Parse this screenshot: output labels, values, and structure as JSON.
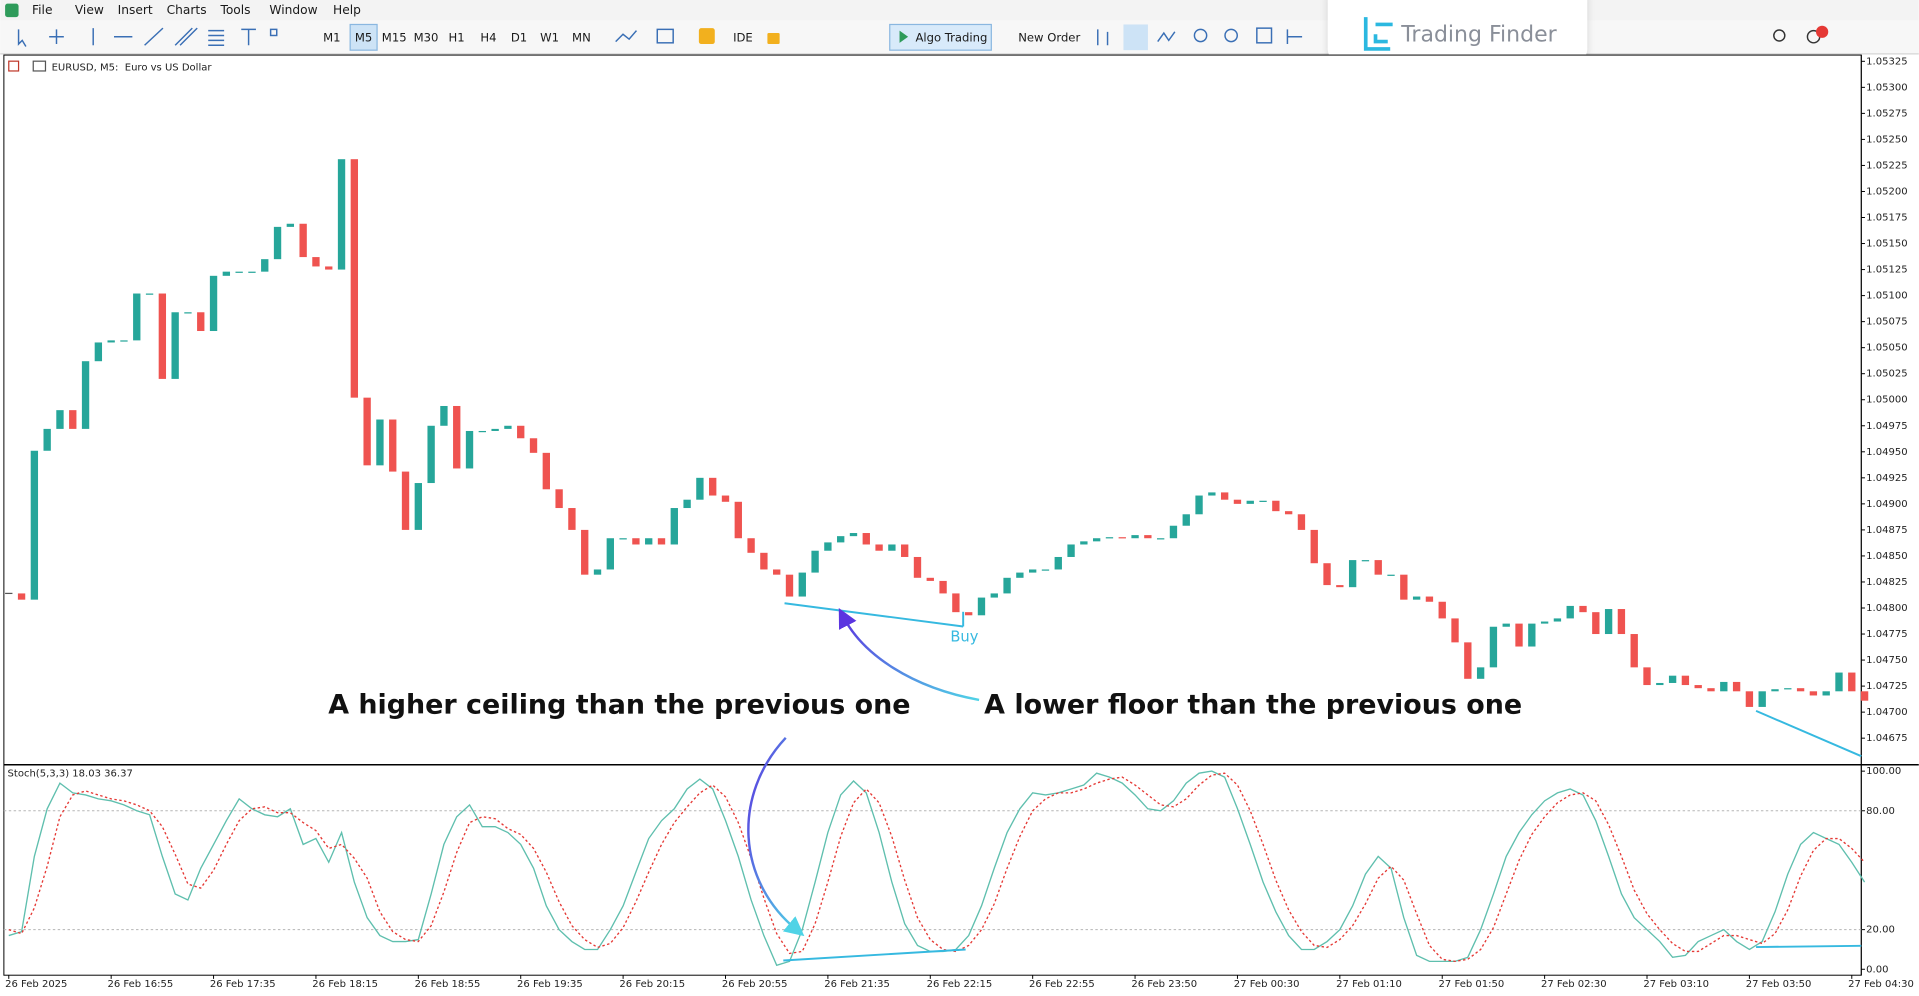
{
  "menu": [
    "File",
    "View",
    "Insert",
    "Charts",
    "Tools",
    "Window",
    "Help"
  ],
  "toolbar": {
    "timeframes": [
      "M1",
      "M5",
      "M15",
      "M30",
      "H1",
      "H4",
      "D1",
      "W1",
      "MN"
    ],
    "ide": "IDE",
    "algo_trading": "Algo Trading",
    "new_order": "New Order"
  },
  "watermark": "Trading Finder",
  "chart_data": [
    {
      "type": "candlestick",
      "title": "EURUSD, M5:  Euro vs US Dollar",
      "up_color": "#26a69a",
      "down_color": "#ef5350",
      "close": [
        1.04814,
        1.04808,
        1.04951,
        1.04972,
        1.0499,
        1.04972,
        1.05037,
        1.05055,
        1.05057,
        1.05057,
        1.05102,
        1.05102,
        1.0502,
        1.05084,
        1.05084,
        1.05066,
        1.05119,
        1.05123,
        1.05123,
        1.05123,
        1.05135,
        1.05166,
        1.05169,
        1.05137,
        1.05128,
        1.05125,
        1.05231,
        1.05002,
        1.04937,
        1.04981,
        1.04931,
        1.04875,
        1.0492,
        1.04975,
        1.04994,
        1.04934,
        1.0497,
        1.0497,
        1.04972,
        1.04975,
        1.04963,
        1.04949,
        1.04914,
        1.04896,
        1.04875,
        1.04832,
        1.04837,
        1.04867,
        1.04867,
        1.04861,
        1.04867,
        1.04861,
        1.04896,
        1.04904,
        1.04925,
        1.04908,
        1.04902,
        1.04867,
        1.04853,
        1.04837,
        1.04832,
        1.04811,
        1.04834,
        1.04855,
        1.04863,
        1.04869,
        1.04872,
        1.04861,
        1.04855,
        1.04861,
        1.04849,
        1.04829,
        1.04826,
        1.04814,
        1.04796,
        1.04793,
        1.0481,
        1.04814,
        1.04829,
        1.04834,
        1.04837,
        1.04837,
        1.04849,
        1.04861,
        1.04864,
        1.04867,
        1.04868,
        1.04867,
        1.0487,
        1.04867,
        1.04867,
        1.04879,
        1.0489,
        1.04908,
        1.04911,
        1.04904,
        1.049,
        1.04903,
        1.04903,
        1.04893,
        1.0489,
        1.04875,
        1.04843,
        1.04822,
        1.0482,
        1.04846,
        1.04846,
        1.04832,
        1.04832,
        1.04808,
        1.04811,
        1.04806,
        1.0479,
        1.04767,
        1.04732,
        1.04743,
        1.04782,
        1.04785,
        1.04763,
        1.04785,
        1.04787,
        1.0479,
        1.04802,
        1.04796,
        1.04775,
        1.04799,
        1.04775,
        1.04743,
        1.04726,
        1.04728,
        1.04735,
        1.04726,
        1.04723,
        1.0472,
        1.04729,
        1.0472,
        1.04705,
        1.0472,
        1.04722,
        1.04723,
        1.0472,
        1.04716,
        1.0472,
        1.04738,
        1.0472,
        1.04711
      ],
      "ylim": [
        1.04653,
        1.05331
      ],
      "yticks": [
        {
          "value": 1.05325,
          "label": "1.05325"
        },
        {
          "value": 1.053,
          "label": "1.05300"
        },
        {
          "value": 1.05275,
          "label": "1.05275"
        },
        {
          "value": 1.0525,
          "label": "1.05250"
        },
        {
          "value": 1.05225,
          "label": "1.05225"
        },
        {
          "value": 1.052,
          "label": "1.05200"
        },
        {
          "value": 1.05175,
          "label": "1.05175"
        },
        {
          "value": 1.0515,
          "label": "1.05150"
        },
        {
          "value": 1.05125,
          "label": "1.05125"
        },
        {
          "value": 1.051,
          "label": "1.05100"
        },
        {
          "value": 1.05075,
          "label": "1.05075"
        },
        {
          "value": 1.0505,
          "label": "1.05050"
        },
        {
          "value": 1.05025,
          "label": "1.05025"
        },
        {
          "value": 1.05,
          "label": "1.05000"
        },
        {
          "value": 1.04975,
          "label": "1.04975"
        },
        {
          "value": 1.0495,
          "label": "1.04950"
        },
        {
          "value": 1.04925,
          "label": "1.04925"
        },
        {
          "value": 1.049,
          "label": "1.04900"
        },
        {
          "value": 1.04875,
          "label": "1.04875"
        },
        {
          "value": 1.0485,
          "label": "1.04850"
        },
        {
          "value": 1.04825,
          "label": "1.04825"
        },
        {
          "value": 1.048,
          "label": "1.04800"
        },
        {
          "value": 1.04775,
          "label": "1.04775"
        },
        {
          "value": 1.0475,
          "label": "1.04750"
        },
        {
          "value": 1.04725,
          "label": "1.04725"
        },
        {
          "value": 1.047,
          "label": "1.04700"
        },
        {
          "value": 1.04675,
          "label": "1.04675"
        }
      ],
      "annotations": [
        "A higher ceiling than the previous one",
        "A lower floor than the previous one",
        "Buy"
      ]
    },
    {
      "type": "line",
      "title": "Stoch(5,3,3) 18.03 36.37",
      "series": [
        {
          "color": "#5fbfae",
          "line_style": "solid",
          "values": [
            17,
            19,
            57,
            81,
            94,
            89,
            88,
            86,
            85,
            83,
            80,
            78,
            57,
            38,
            35,
            51,
            63,
            75,
            86,
            81,
            78,
            77,
            81,
            63,
            66,
            54,
            69,
            44,
            26,
            17,
            14,
            14,
            15,
            38,
            63,
            77,
            83,
            72,
            72,
            69,
            63,
            51,
            32,
            20,
            14,
            10,
            10,
            20,
            32,
            49,
            66,
            75,
            81,
            91,
            96,
            91,
            75,
            57,
            35,
            17,
            2,
            4,
            20,
            44,
            69,
            88,
            95,
            89,
            69,
            44,
            23,
            12,
            9,
            9,
            10,
            17,
            32,
            51,
            69,
            81,
            89,
            88,
            89,
            91,
            93,
            99,
            97,
            94,
            88,
            81,
            80,
            85,
            94,
            99,
            100,
            97,
            81,
            63,
            44,
            29,
            17,
            10,
            10,
            14,
            20,
            32,
            48,
            57,
            51,
            26,
            7,
            4,
            4,
            4,
            6,
            20,
            38,
            57,
            69,
            78,
            85,
            89,
            91,
            88,
            75,
            57,
            38,
            26,
            20,
            14,
            6,
            7,
            14,
            17,
            20,
            14,
            10,
            14,
            29,
            48,
            63,
            69,
            66,
            63,
            54,
            44
          ]
        },
        {
          "color": "#e53935",
          "line_style": "dotted",
          "values": [
            20,
            18,
            31,
            52,
            77,
            88,
            90,
            88,
            86,
            85,
            83,
            80,
            72,
            58,
            43,
            41,
            50,
            63,
            75,
            81,
            82,
            79,
            79,
            74,
            70,
            61,
            63,
            56,
            46,
            29,
            19,
            15,
            14,
            22,
            39,
            59,
            74,
            77,
            76,
            71,
            68,
            61,
            49,
            34,
            22,
            15,
            11,
            13,
            21,
            34,
            49,
            63,
            74,
            82,
            89,
            93,
            87,
            74,
            56,
            36,
            18,
            8,
            9,
            23,
            44,
            67,
            84,
            91,
            84,
            67,
            45,
            26,
            15,
            10,
            9,
            12,
            20,
            33,
            51,
            67,
            80,
            86,
            89,
            89,
            91,
            94,
            96,
            97,
            93,
            88,
            83,
            82,
            86,
            93,
            98,
            99,
            93,
            80,
            63,
            45,
            30,
            19,
            12,
            11,
            15,
            22,
            33,
            46,
            52,
            45,
            28,
            12,
            5,
            4,
            5,
            10,
            21,
            38,
            55,
            68,
            77,
            84,
            88,
            89,
            85,
            73,
            57,
            40,
            28,
            20,
            13,
            9,
            9,
            13,
            17,
            17,
            15,
            13,
            18,
            30,
            47,
            60,
            66,
            66,
            61,
            54
          ]
        }
      ],
      "ylim": [
        -3,
        102
      ],
      "yticks": [
        {
          "value": 100,
          "label": "100.00"
        },
        {
          "value": 80,
          "label": "80.00"
        },
        {
          "value": 20,
          "label": "20.00"
        },
        {
          "value": 0,
          "label": "0.00"
        }
      ],
      "levels": [
        80,
        20
      ],
      "x_labels": [
        "26 Feb 2025",
        "26 Feb 16:55",
        "26 Feb 17:35",
        "26 Feb 18:15",
        "26 Feb 18:55",
        "26 Feb 19:35",
        "26 Feb 20:15",
        "26 Feb 20:55",
        "26 Feb 21:35",
        "26 Feb 22:15",
        "26 Feb 22:55",
        "26 Feb 23:50",
        "27 Feb 00:30",
        "27 Feb 01:10",
        "27 Feb 01:50",
        "27 Feb 02:30",
        "27 Feb 03:10",
        "27 Feb 03:50",
        "27 Feb 04:30"
      ]
    }
  ]
}
